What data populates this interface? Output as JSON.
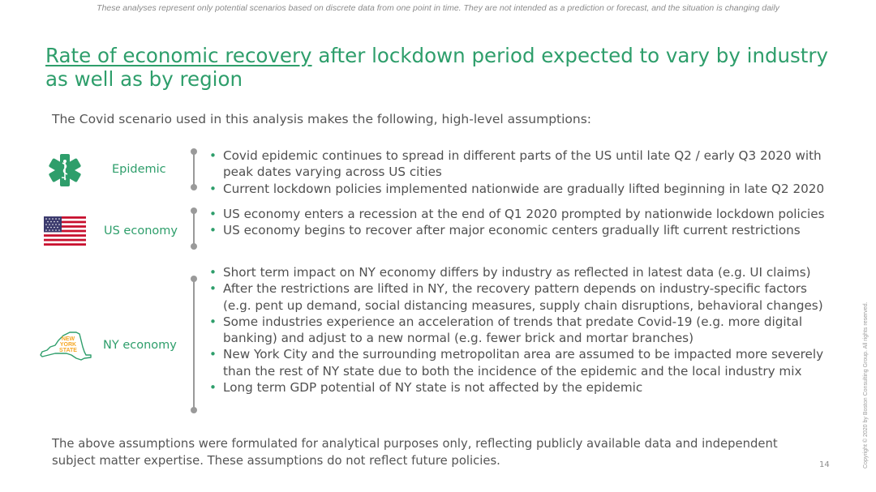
{
  "disclaimer": "These analyses represent only potential scenarios based on discrete data from one point in time. They are not intended as a prediction or forecast, and the situation is changing daily",
  "title": {
    "highlight": "Rate of economic recovery",
    "rest": " after lockdown period expected to vary by industry as well as by region"
  },
  "intro": "The Covid scenario used in this analysis makes the following, high-level assumptions:",
  "rows": [
    {
      "label": "Epidemic",
      "icon": "medical-star-icon",
      "bullets": [
        "Covid epidemic continues to spread in different parts of the US until late Q2 / early Q3 2020 with peak dates varying across US cities",
        "Current lockdown policies implemented nationwide are gradually lifted beginning in late Q2 2020"
      ]
    },
    {
      "label": "US economy",
      "icon": "us-flag-icon",
      "bullets": [
        "US economy enters a recession at the end of Q1 2020 prompted by nationwide lockdown policies",
        "US economy begins to recover after major economic centers gradually lift current restrictions"
      ]
    },
    {
      "label": "NY economy",
      "icon": "new-york-state-map-icon",
      "icon_text": "NEW YORK STATE",
      "bullets": [
        "Short term impact on NY economy differs by industry as reflected in latest data (e.g. UI claims)",
        "After the restrictions are lifted in NY, the recovery pattern depends on industry-specific factors (e.g. pent up demand, social distancing measures, supply chain disruptions, behavioral changes)",
        "Some industries experience an acceleration of trends that predate Covid-19 (e.g. more digital banking) and adjust to a new normal (e.g. fewer brick and mortar branches)",
        "New York City and the surrounding metropolitan area are assumed to be impacted more severely than the rest of NY state due to both the incidence of the epidemic and the local industry mix",
        "Long term GDP potential of NY state is not affected by the epidemic"
      ]
    }
  ],
  "footnote": "The above assumptions were formulated for analytical purposes only, reflecting publicly available data and independent subject matter expertise. These assumptions do not reflect future policies.",
  "page_number": "14",
  "copyright": "Copyright © 2020 by Boston Consulting Group. All rights reserved.",
  "colors": {
    "accent": "#2e9e6b",
    "text": "#505050",
    "muted": "#8c8c8c"
  }
}
